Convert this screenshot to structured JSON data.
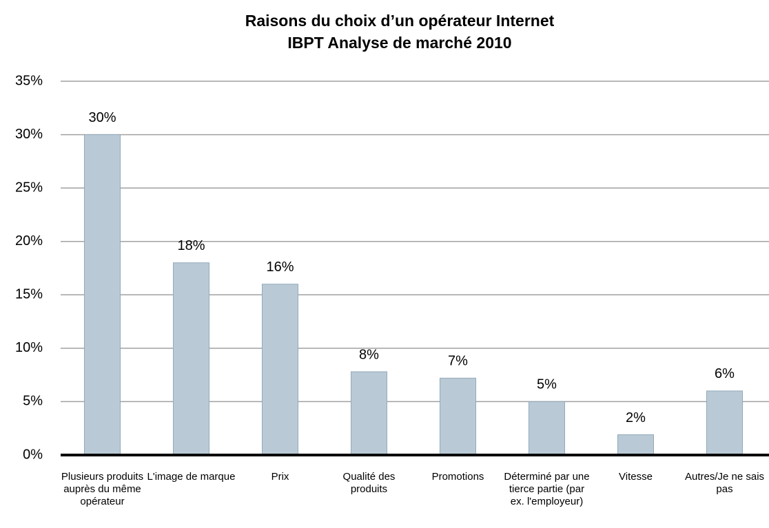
{
  "chart_data": {
    "type": "bar",
    "title": "Raisons du choix d’un opérateur Internet",
    "subtitle": "IBPT Analyse de marché 2010",
    "categories": [
      "Plusieurs produits auprès du même opérateur",
      "L'image de marque",
      "Prix",
      "Qualité des produits",
      "Promotions",
      "Déterminé par une tierce partie (par ex. l'employeur)",
      "Vitesse",
      "Autres/Je ne sais pas"
    ],
    "values": [
      30,
      18,
      16,
      7.8,
      7.2,
      5,
      1.9,
      6
    ],
    "value_labels": [
      "30%",
      "18%",
      "16%",
      "8%",
      "7%",
      "5%",
      "2%",
      "6%"
    ],
    "color": "#b9cad6",
    "ylim": [
      0,
      35
    ],
    "yticks": [
      {
        "value": 0,
        "label": "0%"
      },
      {
        "value": 5,
        "label": "5%"
      },
      {
        "value": 10,
        "label": "10%"
      },
      {
        "value": 15,
        "label": "15%"
      },
      {
        "value": 20,
        "label": "20%"
      },
      {
        "value": 25,
        "label": "25%"
      },
      {
        "value": 30,
        "label": "30%"
      },
      {
        "value": 35,
        "label": "35%"
      }
    ],
    "grid": true
  }
}
